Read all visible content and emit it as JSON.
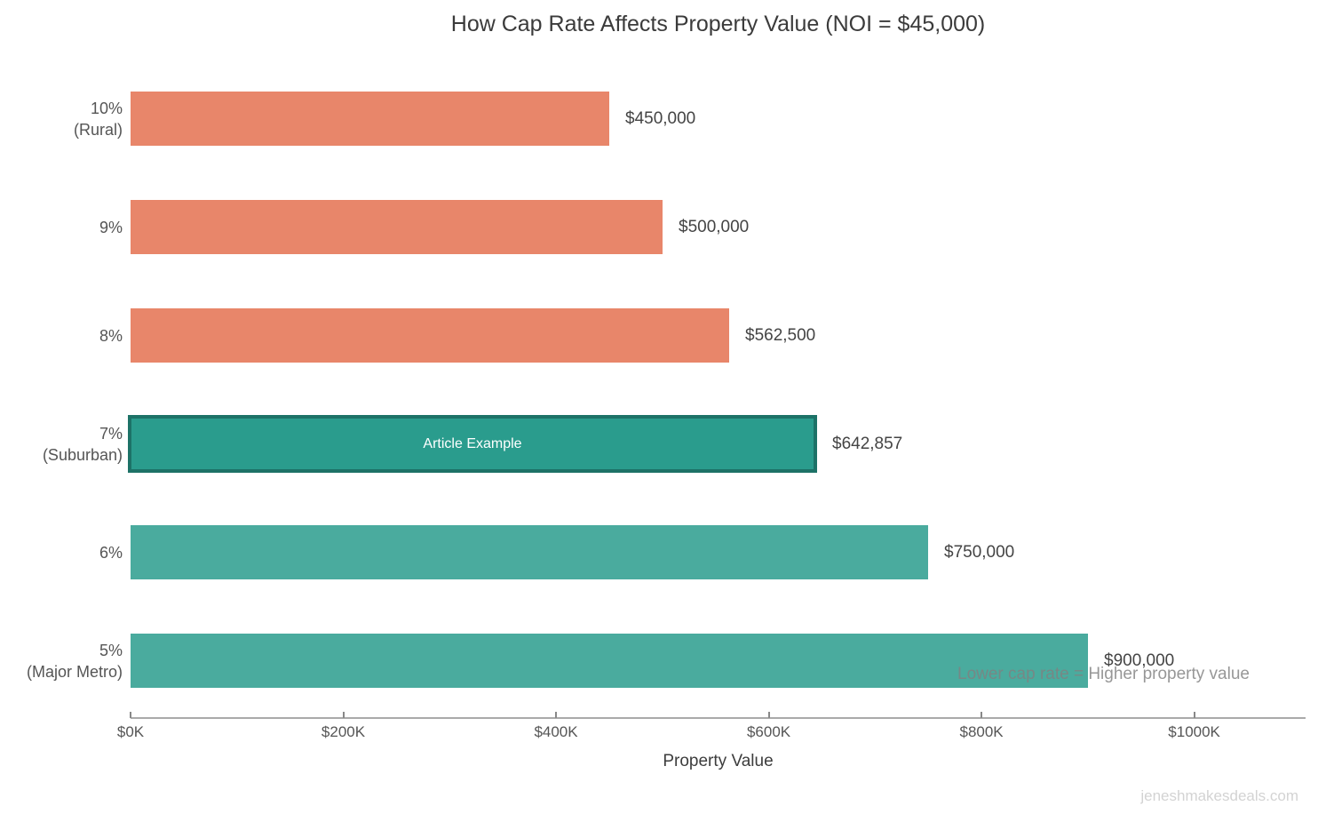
{
  "watermark": "jeneshmakesdeals.com",
  "chart_data": {
    "type": "bar",
    "orientation": "horizontal",
    "title": "How Cap Rate Affects Property Value (NOI = $45,000)",
    "xlabel": "Property Value",
    "xlim": [
      0,
      1100000
    ],
    "grid": false,
    "legend": "none",
    "x_tick_labels": [
      "$0K",
      "$200K",
      "$400K",
      "$600K",
      "$800K",
      "$1000K"
    ],
    "x_tick_values": [
      0,
      200000,
      400000,
      600000,
      800000,
      1000000
    ],
    "categories": [
      "10% (Rural)",
      "9%",
      "8%",
      "7% (Suburban)",
      "6%",
      "5% (Major Metro)"
    ],
    "values": [
      450000,
      500000,
      562500,
      642857,
      750000,
      900000
    ],
    "annotation": "Lower cap rate = Higher property value",
    "colors": {
      "salmon": "#E8866A",
      "teal": "#4AAB9E",
      "highlight_fill": "#2A9C8D",
      "highlight_border": "#1D7267",
      "title_text": "#3b3b3b",
      "value_text": "#444444",
      "axis_text": "#555555"
    },
    "bars": [
      {
        "label_lines": [
          "10%",
          "(Rural)"
        ],
        "value": 450000,
        "value_label": "$450,000",
        "color": "#E8866A",
        "highlighted": false
      },
      {
        "label_lines": [
          "9%"
        ],
        "value": 500000,
        "value_label": "$500,000",
        "color": "#E8866A",
        "highlighted": false
      },
      {
        "label_lines": [
          "8%"
        ],
        "value": 562500,
        "value_label": "$562,500",
        "color": "#E8866A",
        "highlighted": false
      },
      {
        "label_lines": [
          "7%",
          "(Suburban)"
        ],
        "value": 642857,
        "value_label": "$642,857",
        "color": "#2A9C8D",
        "border_color": "#1D7267",
        "bar_text": "Article Example",
        "highlighted": true
      },
      {
        "label_lines": [
          "6%"
        ],
        "value": 750000,
        "value_label": "$750,000",
        "color": "#4AAB9E",
        "highlighted": false
      },
      {
        "label_lines": [
          "5%",
          "(Major Metro)"
        ],
        "value": 900000,
        "value_label": "$900,000",
        "color": "#4AAB9E",
        "highlighted": false
      }
    ]
  }
}
